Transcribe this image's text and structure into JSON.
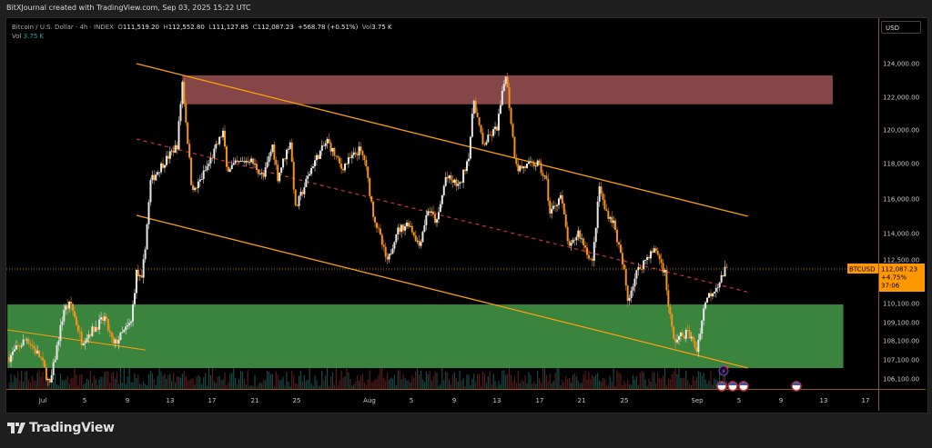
{
  "header": {
    "title": "BitXJournal created with TradingView.com, Sep 03, 2025 15:22 UTC"
  },
  "legend": {
    "symbol": "Bitcoin / U.S. Dollar · 4h · INDEX",
    "o_label": "O",
    "open": "111,519.20",
    "h_label": "H",
    "high": "112,552.80",
    "l_label": "L",
    "low": "111,127.85",
    "c_label": "C",
    "close": "112,087.23",
    "change": "+568.78 (+0.51%)",
    "vol_label": "Vol",
    "vol": "3.75 K",
    "vol_row_label": "Vol",
    "vol_row_value": "3.75 K"
  },
  "price_axis": {
    "currency": "USD",
    "ticks": [
      "124,000.00",
      "122,000.00",
      "120,000.00",
      "118,000.00",
      "116,000.00",
      "114,000.00",
      "112,500.00",
      "110,100.00",
      "109,100.00",
      "108,100.00",
      "107,100.00",
      "106,100.00"
    ],
    "symbol_tag": "BTCUSD",
    "last_price": "112,087.23",
    "last_change": "+4.75%",
    "countdown": "37:06"
  },
  "time_axis": {
    "ticks": [
      "Jul",
      "5",
      "9",
      "13",
      "17",
      "21",
      "25",
      "Aug",
      "5",
      "9",
      "13",
      "17",
      "21",
      "25",
      "Sep",
      "5",
      "9",
      "13",
      "17"
    ]
  },
  "logo": {
    "text": "TradingView"
  },
  "colors": {
    "up": "#e8e8e8",
    "down": "#f7931a",
    "channel": "#f59e0b",
    "midline": "#e0334d",
    "supply_zone": "#8b4a4a",
    "demand_zone": "#3d8b40",
    "accent": "#ff9800"
  },
  "chart_data": {
    "type": "candlestick",
    "timeframe": "4h",
    "symbol": "BTCUSD",
    "ylim": [
      105500,
      124500
    ],
    "last": 112087.23,
    "path": [
      [
        "2025-06-27T20:00",
        107240
      ],
      [
        "2025-06-29T12:00",
        108250
      ],
      [
        "2025-06-30T20:00",
        107150
      ],
      [
        "2025-07-01T16:00",
        105720
      ],
      [
        "2025-07-03T00:00",
        109810
      ],
      [
        "2025-07-03T16:00",
        110050
      ],
      [
        "2025-07-04T16:00",
        108100
      ],
      [
        "2025-07-06T20:00",
        109340
      ],
      [
        "2025-07-07T16:00",
        107860
      ],
      [
        "2025-07-09T08:00",
        109100
      ],
      [
        "2025-07-09T20:00",
        111800
      ],
      [
        "2025-07-10T08:00",
        111300
      ],
      [
        "2025-07-10T16:00",
        113330
      ],
      [
        "2025-07-11T04:00",
        116970
      ],
      [
        "2025-07-12T00:00",
        117740
      ],
      [
        "2025-07-13T16:00",
        119080
      ],
      [
        "2025-07-14T04:00",
        122920
      ],
      [
        "2025-07-15T00:00",
        116970
      ],
      [
        "2025-07-15T08:00",
        116460
      ],
      [
        "2025-07-16T16:00",
        118000
      ],
      [
        "2025-07-18T00:00",
        119890
      ],
      [
        "2025-07-18T08:00",
        117740
      ],
      [
        "2025-07-20T12:00",
        118270
      ],
      [
        "2025-07-21T20:00",
        117230
      ],
      [
        "2025-07-22T16:00",
        119080
      ],
      [
        "2025-07-23T04:00",
        117230
      ],
      [
        "2025-07-24T08:00",
        119350
      ],
      [
        "2025-07-24T20:00",
        115420
      ],
      [
        "2025-07-26T12:00",
        118000
      ],
      [
        "2025-07-27T20:00",
        119350
      ],
      [
        "2025-07-29T04:00",
        117740
      ],
      [
        "2025-07-30T20:00",
        118800
      ],
      [
        "2025-07-31T08:00",
        118270
      ],
      [
        "2025-08-01T04:00",
        115160
      ],
      [
        "2025-08-02T12:00",
        112300
      ],
      [
        "2025-08-03T08:00",
        114100
      ],
      [
        "2025-08-04T12:00",
        114630
      ],
      [
        "2025-08-05T12:00",
        113330
      ],
      [
        "2025-08-06T08:00",
        115420
      ],
      [
        "2025-08-07T04:00",
        114630
      ],
      [
        "2025-08-08T00:00",
        117230
      ],
      [
        "2025-08-09T08:00",
        116720
      ],
      [
        "2025-08-10T04:00",
        118540
      ],
      [
        "2025-08-10T16:00",
        121840
      ],
      [
        "2025-08-11T12:00",
        119080
      ],
      [
        "2025-08-12T20:00",
        120160
      ],
      [
        "2025-08-13T16:00",
        123460
      ],
      [
        "2025-08-14T12:00",
        118540
      ],
      [
        "2025-08-14T20:00",
        117740
      ],
      [
        "2025-08-16T16:00",
        118000
      ],
      [
        "2025-08-17T12:00",
        116970
      ],
      [
        "2025-08-17T20:00",
        115160
      ],
      [
        "2025-08-18T20:00",
        116200
      ],
      [
        "2025-08-19T16:00",
        113070
      ],
      [
        "2025-08-20T12:00",
        114100
      ],
      [
        "2025-08-21T20:00",
        112300
      ],
      [
        "2025-08-22T12:00",
        116720
      ],
      [
        "2025-08-23T00:00",
        115420
      ],
      [
        "2025-08-23T20:00",
        114630
      ],
      [
        "2025-08-24T20:00",
        111800
      ],
      [
        "2025-08-25T04:00",
        110300
      ],
      [
        "2025-08-26T00:00",
        111800
      ],
      [
        "2025-08-27T04:00",
        112800
      ],
      [
        "2025-08-27T20:00",
        113070
      ],
      [
        "2025-08-28T16:00",
        111800
      ],
      [
        "2025-08-29T00:00",
        110050
      ],
      [
        "2025-08-29T12:00",
        108100
      ],
      [
        "2025-08-30T20:00",
        108570
      ],
      [
        "2025-08-31T16:00",
        107620
      ],
      [
        "2025-09-01T12:00",
        110300
      ],
      [
        "2025-09-02T20:00",
        111300
      ],
      [
        "2025-09-03T12:00",
        112087
      ]
    ],
    "drawings": {
      "channel_upper": [
        [
          "2025-07-09T20:00",
          124000
        ],
        [
          "2025-09-05T12:00",
          115000
        ]
      ],
      "channel_lower": [
        [
          "2025-07-09T20:00",
          115050
        ],
        [
          "2025-09-05T12:00",
          106670
        ]
      ],
      "channel_mid": [
        [
          "2025-07-09T20:00",
          119460
        ],
        [
          "2025-09-05T12:00",
          110730
        ]
      ],
      "early_trendline": [
        [
          "2025-06-27T16:00",
          108700
        ],
        [
          "2025-07-10T16:00",
          107620
        ]
      ],
      "supply_zone": {
        "from": "2025-07-14T04:00",
        "to": "2025-09-13T12:00",
        "top": 123300,
        "bottom": 121570
      },
      "demand_zone": {
        "from": "2025-06-27T16:00",
        "to": "2025-09-14T12:00",
        "top": 110050,
        "bottom": 106670
      }
    }
  }
}
